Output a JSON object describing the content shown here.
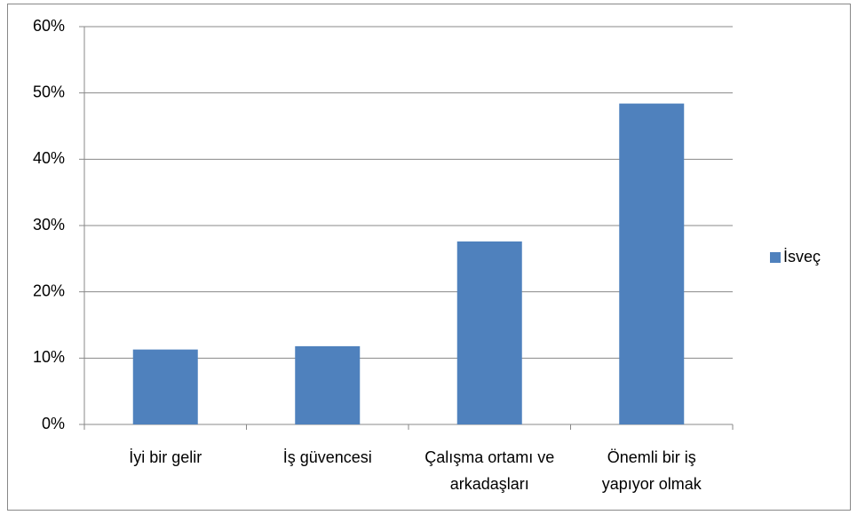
{
  "chart_data": {
    "type": "bar",
    "categories": [
      "İyi bir gelir",
      "İş güvencesi",
      "Çalışma ortamı ve arkadaşları",
      "Önemli bir iş yapıyor olmak"
    ],
    "series": [
      {
        "name": "İsveç",
        "color": "#4f81bd",
        "values": [
          11.3,
          11.8,
          27.6,
          48.4
        ]
      }
    ],
    "ylim": [
      0,
      60
    ],
    "yticks": [
      {
        "value": 0,
        "label": "0%"
      },
      {
        "value": 10,
        "label": "10%"
      },
      {
        "value": 20,
        "label": "20%"
      },
      {
        "value": 30,
        "label": "30%"
      },
      {
        "value": 40,
        "label": "40%"
      },
      {
        "value": 50,
        "label": "50%"
      },
      {
        "value": 60,
        "label": "60%"
      }
    ],
    "grid": true,
    "legend": "right"
  }
}
